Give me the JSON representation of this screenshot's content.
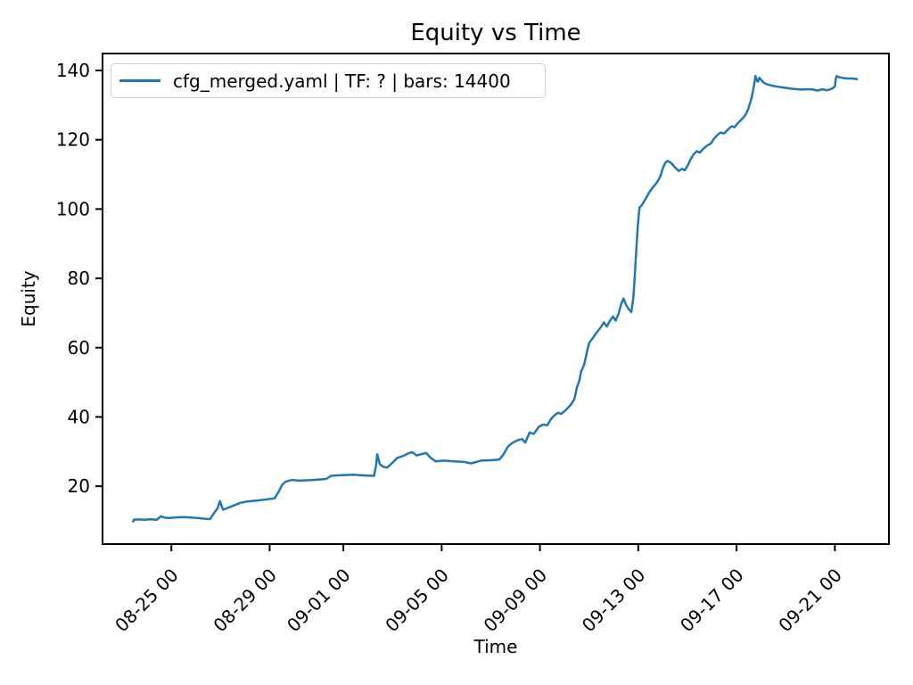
{
  "title": "Equity vs Time",
  "axes": {
    "xlabel": "Time",
    "ylabel": "Equity"
  },
  "legend": {
    "label": "cfg_merged.yaml | TF: ? | bars: 14400",
    "line_color": "#1f77b4"
  },
  "chart_data": {
    "type": "line",
    "title": "Equity vs Time",
    "xlabel": "Time",
    "ylabel": "Equity",
    "grid": false,
    "legend_position": "upper-left",
    "line_color": "#1f77b4",
    "x_unit": "days relative to tick 08-25 00",
    "x_domain_days": [
      -2.8,
      29.2
    ],
    "y_domain": [
      3.3,
      144.9
    ],
    "y_ticks": [
      20,
      40,
      60,
      80,
      100,
      120,
      140
    ],
    "x_ticks": [
      {
        "day": 0,
        "label": "08-25 00"
      },
      {
        "day": 4,
        "label": "08-29 00"
      },
      {
        "day": 7,
        "label": "09-01 00"
      },
      {
        "day": 11,
        "label": "09-05 00"
      },
      {
        "day": 15,
        "label": "09-09 00"
      },
      {
        "day": 19,
        "label": "09-13 00"
      },
      {
        "day": 23,
        "label": "09-17 00"
      },
      {
        "day": 27,
        "label": "09-21 00"
      }
    ],
    "series": [
      {
        "name": "cfg_merged.yaml | TF: ? | bars: 14400",
        "color": "#1f77b4",
        "points": [
          [
            -1.56,
            9.8
          ],
          [
            -1.52,
            10.35
          ],
          [
            -1.3,
            10.4
          ],
          [
            -1.1,
            10.3
          ],
          [
            -0.85,
            10.45
          ],
          [
            -0.6,
            10.3
          ],
          [
            -0.42,
            11.3
          ],
          [
            -0.25,
            10.9
          ],
          [
            -0.05,
            10.85
          ],
          [
            0.2,
            11.0
          ],
          [
            0.5,
            11.1
          ],
          [
            0.8,
            10.95
          ],
          [
            1.1,
            10.8
          ],
          [
            1.35,
            10.6
          ],
          [
            1.58,
            10.5
          ],
          [
            1.75,
            12.4
          ],
          [
            1.88,
            13.6
          ],
          [
            1.98,
            15.7
          ],
          [
            2.1,
            13.2
          ],
          [
            2.25,
            13.6
          ],
          [
            2.45,
            14.2
          ],
          [
            2.8,
            15.2
          ],
          [
            3.1,
            15.6
          ],
          [
            3.5,
            15.9
          ],
          [
            3.9,
            16.2
          ],
          [
            4.2,
            16.5
          ],
          [
            4.35,
            18.2
          ],
          [
            4.5,
            20.3
          ],
          [
            4.65,
            21.3
          ],
          [
            4.9,
            21.8
          ],
          [
            5.2,
            21.6
          ],
          [
            5.55,
            21.7
          ],
          [
            5.95,
            21.9
          ],
          [
            6.3,
            22.1
          ],
          [
            6.5,
            23.0
          ],
          [
            6.95,
            23.2
          ],
          [
            7.4,
            23.3
          ],
          [
            7.9,
            23.1
          ],
          [
            8.25,
            23.0
          ],
          [
            8.33,
            26.0
          ],
          [
            8.38,
            29.2
          ],
          [
            8.48,
            26.4
          ],
          [
            8.62,
            25.6
          ],
          [
            8.78,
            25.4
          ],
          [
            8.97,
            26.6
          ],
          [
            9.2,
            28.2
          ],
          [
            9.45,
            28.8
          ],
          [
            9.68,
            29.6
          ],
          [
            9.82,
            29.8
          ],
          [
            9.97,
            28.9
          ],
          [
            10.15,
            29.2
          ],
          [
            10.37,
            29.6
          ],
          [
            10.55,
            28.2
          ],
          [
            10.75,
            27.2
          ],
          [
            11.1,
            27.4
          ],
          [
            11.5,
            27.2
          ],
          [
            11.9,
            27.0
          ],
          [
            12.2,
            26.6
          ],
          [
            12.6,
            27.4
          ],
          [
            13.0,
            27.5
          ],
          [
            13.35,
            27.7
          ],
          [
            13.52,
            29.2
          ],
          [
            13.7,
            31.5
          ],
          [
            13.9,
            32.6
          ],
          [
            14.1,
            33.3
          ],
          [
            14.28,
            33.6
          ],
          [
            14.4,
            32.6
          ],
          [
            14.58,
            35.5
          ],
          [
            14.75,
            35.1
          ],
          [
            14.95,
            37.1
          ],
          [
            15.12,
            37.8
          ],
          [
            15.3,
            37.6
          ],
          [
            15.45,
            39.4
          ],
          [
            15.6,
            40.5
          ],
          [
            15.73,
            41.2
          ],
          [
            15.87,
            40.9
          ],
          [
            16.05,
            42.0
          ],
          [
            16.25,
            43.5
          ],
          [
            16.4,
            45.1
          ],
          [
            16.5,
            48.5
          ],
          [
            16.6,
            50.4
          ],
          [
            16.68,
            53.2
          ],
          [
            16.8,
            55.1
          ],
          [
            16.9,
            58.4
          ],
          [
            17.0,
            61.3
          ],
          [
            17.15,
            62.8
          ],
          [
            17.3,
            64.3
          ],
          [
            17.45,
            65.6
          ],
          [
            17.6,
            67.3
          ],
          [
            17.72,
            66.1
          ],
          [
            17.85,
            67.8
          ],
          [
            17.97,
            69.0
          ],
          [
            18.08,
            67.8
          ],
          [
            18.2,
            69.8
          ],
          [
            18.3,
            72.5
          ],
          [
            18.4,
            74.2
          ],
          [
            18.5,
            72.4
          ],
          [
            18.6,
            71.2
          ],
          [
            18.72,
            70.3
          ],
          [
            18.8,
            74.5
          ],
          [
            18.86,
            81.0
          ],
          [
            18.92,
            88.5
          ],
          [
            18.98,
            95.0
          ],
          [
            19.05,
            100.4
          ],
          [
            19.12,
            100.9
          ],
          [
            19.2,
            101.8
          ],
          [
            19.32,
            103.2
          ],
          [
            19.45,
            104.9
          ],
          [
            19.6,
            106.3
          ],
          [
            19.72,
            107.3
          ],
          [
            19.82,
            108.4
          ],
          [
            19.9,
            109.5
          ],
          [
            20.0,
            111.8
          ],
          [
            20.1,
            113.4
          ],
          [
            20.2,
            113.9
          ],
          [
            20.35,
            113.2
          ],
          [
            20.5,
            112.0
          ],
          [
            20.65,
            111.0
          ],
          [
            20.78,
            111.6
          ],
          [
            20.9,
            111.2
          ],
          [
            21.02,
            112.7
          ],
          [
            21.12,
            114.2
          ],
          [
            21.25,
            115.8
          ],
          [
            21.38,
            116.7
          ],
          [
            21.5,
            116.3
          ],
          [
            21.65,
            117.4
          ],
          [
            21.8,
            118.3
          ],
          [
            21.95,
            118.9
          ],
          [
            22.08,
            120.3
          ],
          [
            22.22,
            121.4
          ],
          [
            22.35,
            122.1
          ],
          [
            22.5,
            121.8
          ],
          [
            22.65,
            123.0
          ],
          [
            22.8,
            123.9
          ],
          [
            22.92,
            123.6
          ],
          [
            23.05,
            124.8
          ],
          [
            23.18,
            125.7
          ],
          [
            23.3,
            126.6
          ],
          [
            23.4,
            127.6
          ],
          [
            23.48,
            129.0
          ],
          [
            23.55,
            130.6
          ],
          [
            23.62,
            132.3
          ],
          [
            23.68,
            134.6
          ],
          [
            23.73,
            136.5
          ],
          [
            23.77,
            138.4
          ],
          [
            23.82,
            137.2
          ],
          [
            23.87,
            136.8
          ],
          [
            23.93,
            137.9
          ],
          [
            24.0,
            137.3
          ],
          [
            24.1,
            136.5
          ],
          [
            24.25,
            136.0
          ],
          [
            24.45,
            135.6
          ],
          [
            24.7,
            135.3
          ],
          [
            25.0,
            135.0
          ],
          [
            25.3,
            134.7
          ],
          [
            25.6,
            134.5
          ],
          [
            25.9,
            134.6
          ],
          [
            26.1,
            134.5
          ],
          [
            26.3,
            134.2
          ],
          [
            26.5,
            134.6
          ],
          [
            26.65,
            134.3
          ],
          [
            26.8,
            134.5
          ],
          [
            26.92,
            134.9
          ],
          [
            27.0,
            135.4
          ],
          [
            27.04,
            137.8
          ],
          [
            27.08,
            138.4
          ],
          [
            27.15,
            138.1
          ],
          [
            27.3,
            137.9
          ],
          [
            27.5,
            137.7
          ],
          [
            27.7,
            137.7
          ],
          [
            27.9,
            137.5
          ]
        ]
      }
    ]
  }
}
